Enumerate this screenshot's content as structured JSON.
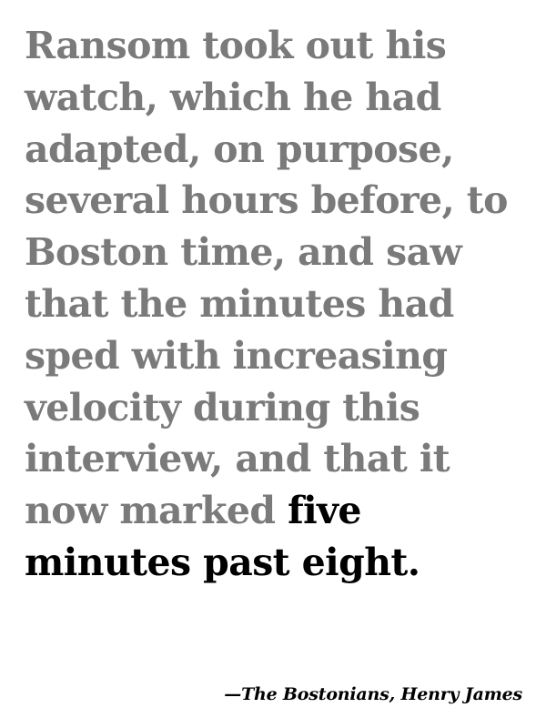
{
  "quote": {
    "lines": [
      "Ransom took out his",
      "watch, which he had",
      "adapted, on purpose,",
      "several hours before, to",
      "Boston time, and saw",
      "that the minutes had",
      "sped with increasing",
      "velocity during this",
      "interview, and that it"
    ],
    "line10_plain": "now marked ",
    "line10_emph": "five",
    "line11_emph": "minutes past eight."
  },
  "attribution": {
    "text": "—The Bostonians, Henry James"
  },
  "colors": {
    "quote_text": "#7a7a7a",
    "emphasis_text": "#000000",
    "background": "#ffffff"
  }
}
